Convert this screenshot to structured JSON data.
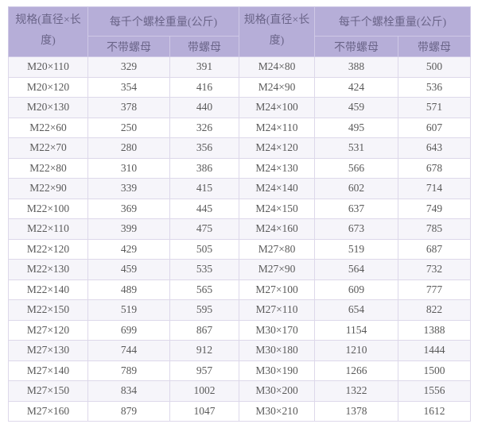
{
  "header": {
    "spec": "规格(直径×长度)",
    "weight_group": "每千个螺栓重量(公斤)",
    "without_nut": "不带螺母",
    "with_nut": "带螺母"
  },
  "rows": [
    [
      "M20×110",
      "329",
      "391",
      "M24×80",
      "388",
      "500"
    ],
    [
      "M20×120",
      "354",
      "416",
      "M24×90",
      "424",
      "536"
    ],
    [
      "M20×130",
      "378",
      "440",
      "M24×100",
      "459",
      "571"
    ],
    [
      "M22×60",
      "250",
      "326",
      "M24×110",
      "495",
      "607"
    ],
    [
      "M22×70",
      "280",
      "356",
      "M24×120",
      "531",
      "643"
    ],
    [
      "M22×80",
      "310",
      "386",
      "M24×130",
      "566",
      "678"
    ],
    [
      "M22×90",
      "339",
      "415",
      "M24×140",
      "602",
      "714"
    ],
    [
      "M22×100",
      "369",
      "445",
      "M24×150",
      "637",
      "749"
    ],
    [
      "M22×110",
      "399",
      "475",
      "M24×160",
      "673",
      "785"
    ],
    [
      "M22×120",
      "429",
      "505",
      "M27×80",
      "519",
      "687"
    ],
    [
      "M22×130",
      "459",
      "535",
      "M27×90",
      "564",
      "732"
    ],
    [
      "M22×140",
      "489",
      "565",
      "M27×100",
      "609",
      "777"
    ],
    [
      "M22×150",
      "519",
      "595",
      "M27×110",
      "654",
      "822"
    ],
    [
      "M27×120",
      "699",
      "867",
      "M30×170",
      "1154",
      "1388"
    ],
    [
      "M27×130",
      "744",
      "912",
      "M30×180",
      "1210",
      "1444"
    ],
    [
      "M27×140",
      "789",
      "957",
      "M30×190",
      "1266",
      "1500"
    ],
    [
      "M27×150",
      "834",
      "1002",
      "M30×200",
      "1322",
      "1556"
    ],
    [
      "M27×160",
      "879",
      "1047",
      "M30×210",
      "1378",
      "1612"
    ]
  ]
}
